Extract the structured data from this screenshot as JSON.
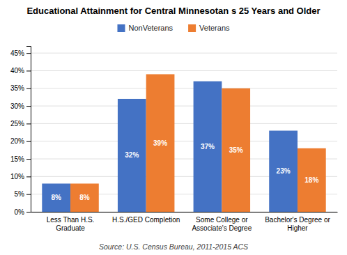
{
  "chart_data": {
    "type": "bar",
    "title": "Educational Attainment for Central Minnesotan s 25 Years and Older",
    "categories": [
      "Less Than H.S.\nGraduate",
      "H.S./GED Completion",
      "Some College or\nAssociate's Degree",
      "Bachelor's Degree or\nHigher"
    ],
    "series": [
      {
        "name": "NonVeterans",
        "color": "#4472C4",
        "values": [
          8,
          32,
          37,
          23
        ],
        "value_labels": [
          "8%",
          "32%",
          "37%",
          "23%"
        ]
      },
      {
        "name": "Veterans",
        "color": "#ED7D31",
        "values": [
          8,
          39,
          35,
          18
        ],
        "value_labels": [
          "8%",
          "39%",
          "35%",
          "18%"
        ]
      }
    ],
    "ylim": [
      0,
      47
    ],
    "yticks": [
      {
        "value": 0,
        "label": "0%"
      },
      {
        "value": 5,
        "label": "5%"
      },
      {
        "value": 10,
        "label": "10%"
      },
      {
        "value": 15,
        "label": "15%"
      },
      {
        "value": 20,
        "label": "20%"
      },
      {
        "value": 25,
        "label": "25%"
      },
      {
        "value": 30,
        "label": "30%"
      },
      {
        "value": 35,
        "label": "35%"
      },
      {
        "value": 40,
        "label": "40%"
      },
      {
        "value": 45,
        "label": "45%"
      }
    ],
    "grid": true,
    "legend": "top",
    "data_labels": true,
    "annotations": [
      "Source: U.S. Census Bureau, 2011-2015 ACS"
    ]
  }
}
